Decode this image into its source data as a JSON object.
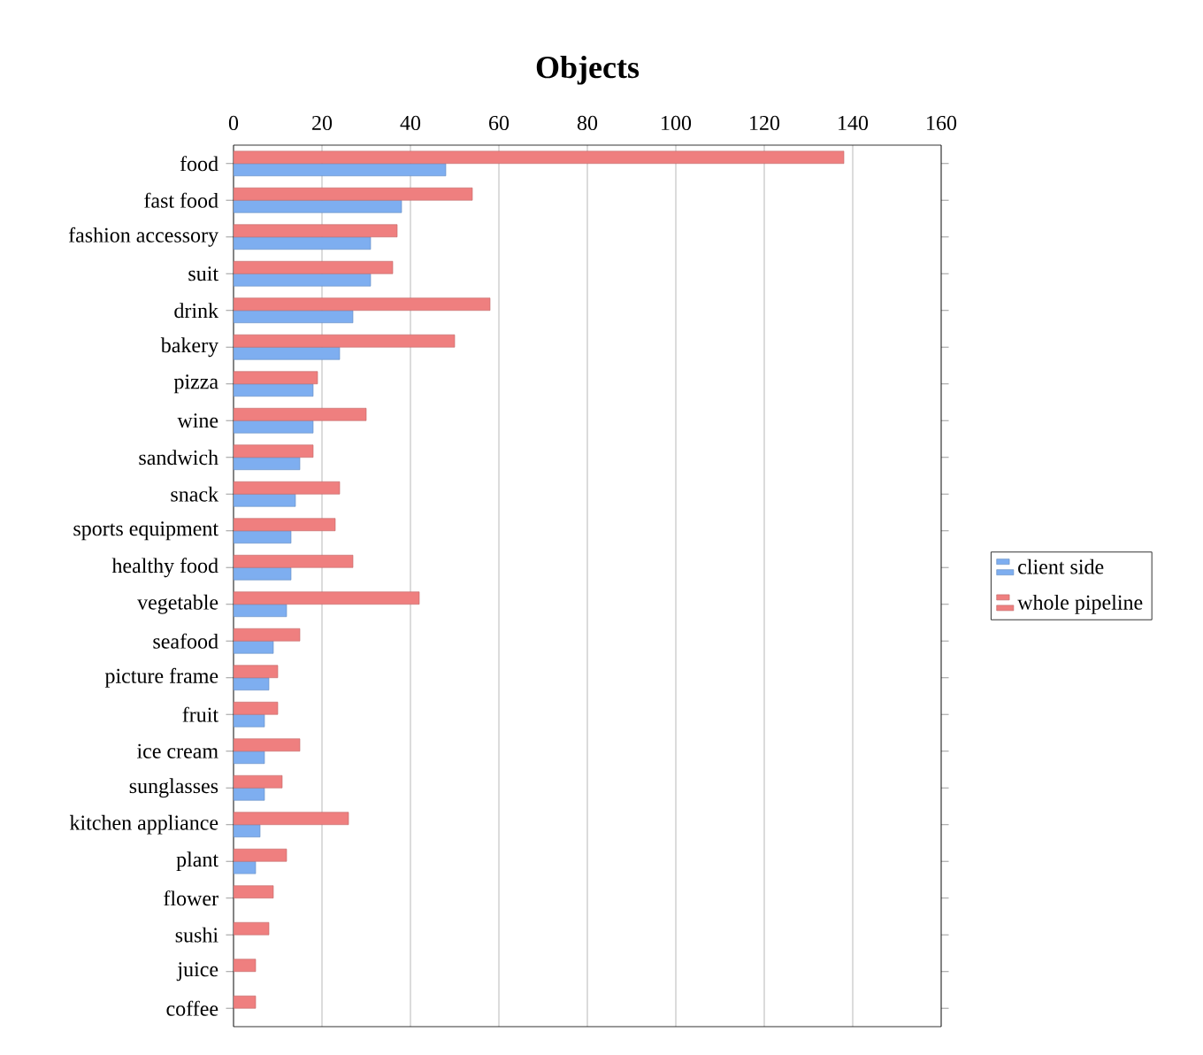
{
  "chart_data": {
    "type": "bar",
    "orientation": "horizontal",
    "title": "Objects",
    "categories": [
      "food",
      "fast food",
      "fashion accessory",
      "suit",
      "drink",
      "bakery",
      "pizza",
      "wine",
      "sandwich",
      "snack",
      "sports equipment",
      "healthy food",
      "vegetable",
      "seafood",
      "picture frame",
      "fruit",
      "ice cream",
      "sunglasses",
      "kitchen appliance",
      "plant",
      "flower",
      "sushi",
      "juice",
      "coffee"
    ],
    "series": [
      {
        "name": "client side",
        "color": "#7eaef0",
        "values": [
          48,
          38,
          31,
          31,
          27,
          24,
          18,
          18,
          15,
          14,
          13,
          13,
          12,
          9,
          8,
          7,
          7,
          7,
          6,
          5,
          null,
          null,
          null,
          null
        ]
      },
      {
        "name": "whole pipeline",
        "color": "#ef7f7f",
        "values": [
          138,
          54,
          37,
          36,
          58,
          50,
          19,
          30,
          18,
          24,
          23,
          27,
          42,
          15,
          10,
          10,
          15,
          11,
          26,
          12,
          9,
          8,
          5,
          5
        ]
      }
    ],
    "xlim": [
      0,
      160
    ],
    "xticks": [
      0,
      20,
      40,
      60,
      80,
      100,
      120,
      140,
      160
    ],
    "grid": "x",
    "legend": "right"
  }
}
